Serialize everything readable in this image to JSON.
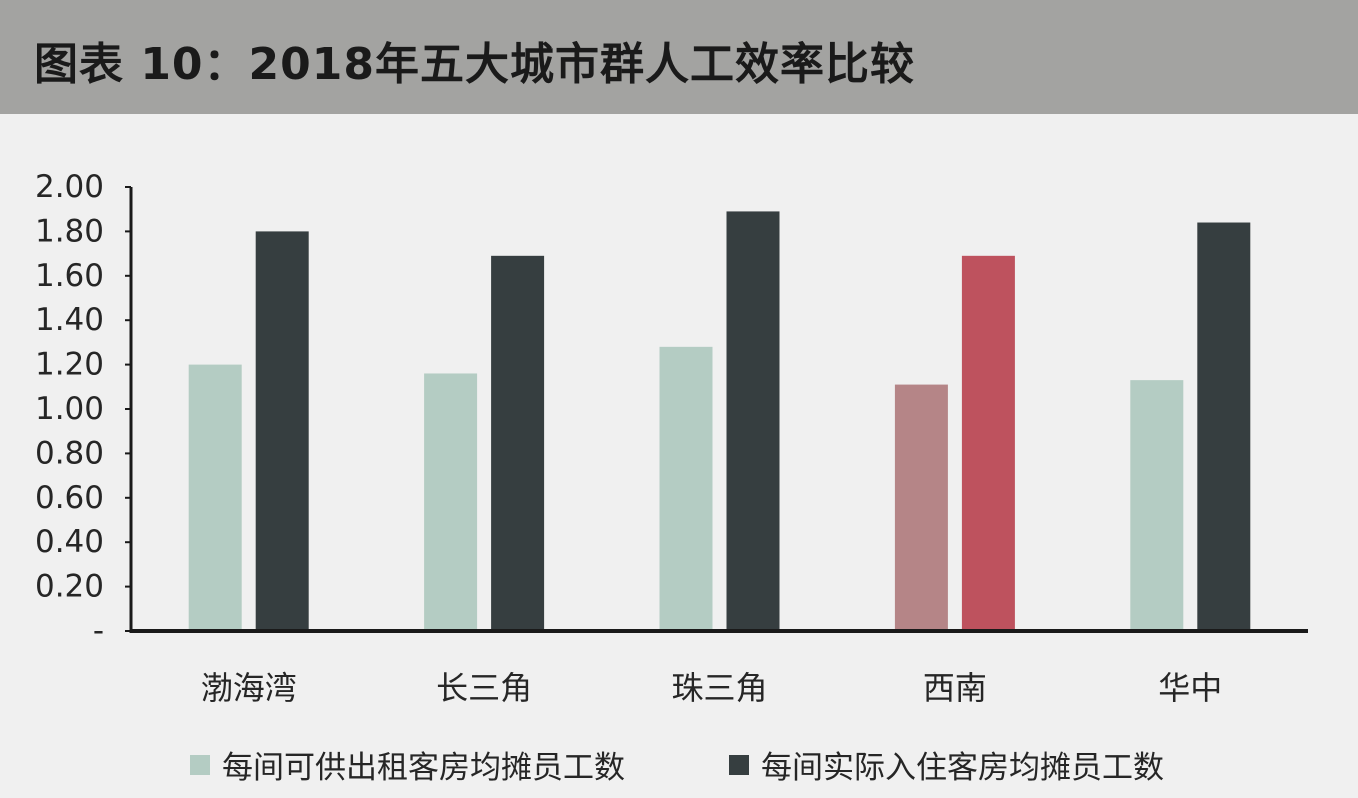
{
  "header": {
    "title": "图表 10：2018年五大城市群人工效率比较"
  },
  "colors": {
    "header_bg": "#a3a3a1",
    "background": "#f0f0f0",
    "series_1": "#b4ccc3",
    "series_2": "#363e40",
    "highlight_1": "#b58587",
    "highlight_2": "#be525e",
    "axis": "#1a1a1a"
  },
  "chart_data": {
    "type": "bar",
    "categories": [
      "渤海湾",
      "长三角",
      "珠三角",
      "西南",
      "华中"
    ],
    "series": [
      {
        "name": "每间可供出租客房均摊员工数",
        "values": [
          1.2,
          1.16,
          1.28,
          1.11,
          1.13
        ]
      },
      {
        "name": "每间实际入住客房均摊员工数",
        "values": [
          1.8,
          1.69,
          1.89,
          1.69,
          1.84
        ]
      }
    ],
    "highlight_category": "西南",
    "ylim": [
      0,
      2
    ],
    "yticks": [
      "-",
      "0.20",
      "0.40",
      "0.60",
      "0.80",
      "1.00",
      "1.20",
      "1.40",
      "1.60",
      "1.80",
      "2.00"
    ],
    "xlabel": "",
    "ylabel": "",
    "grid": false,
    "legend": "bottom"
  }
}
